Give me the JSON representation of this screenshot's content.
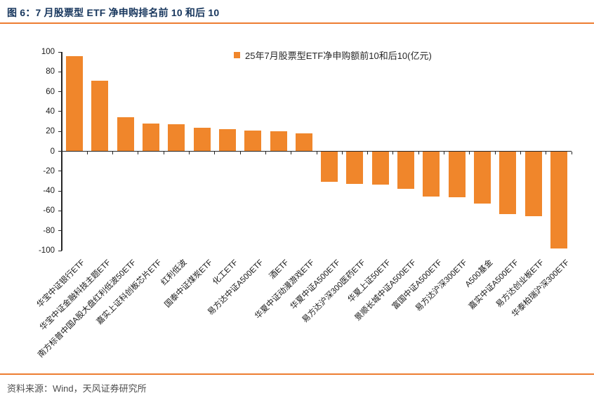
{
  "figure": {
    "title": "图 6：7 月股票型 ETF 净申购排名前 10 和后 10"
  },
  "chart_data": {
    "type": "bar",
    "legend": "25年7月股票型ETF净申购额前10和后10(亿元)",
    "legend_position": "top-center",
    "unit": "亿元",
    "grid": false,
    "ylim": [
      -100,
      100
    ],
    "yticks": [
      100,
      80,
      60,
      40,
      20,
      0,
      -20,
      -40,
      -60,
      -80,
      -100
    ],
    "bar_color": "#F0862B",
    "categories": [
      "华宝中证银行ETF",
      "华宝中证金融科技主题ETF",
      "南方标普中国A股大盘红利低波50ETF",
      "嘉实上证科创板芯片ETF",
      "红利低波",
      "国泰中证煤炭ETF",
      "化工ETF",
      "易方达中证A500ETF",
      "酒ETF",
      "华夏中证动漫游戏ETF",
      "华夏中证A500ETF",
      "易方达沪深300医药ETF",
      "华夏上证50ETF",
      "景顺长城中证A500ETF",
      "富国中证A500ETF",
      "易方达沪深300ETF",
      "A500基金",
      "嘉实中证A500ETF",
      "易方达创业板ETF",
      "华泰柏瑞沪深300ETF"
    ],
    "values": [
      96,
      71,
      34,
      28,
      27,
      24,
      22,
      21,
      20,
      18,
      -30,
      -32,
      -33,
      -37,
      -45,
      -46,
      -52,
      -63,
      -65,
      -97
    ]
  },
  "footer": {
    "source_text": "资料来源：Wind，天风证券研究所"
  },
  "colors": {
    "accent_orange": "#ED7D31",
    "bar_orange": "#F0862B",
    "title_navy": "#17365D",
    "footer_gray": "#4D4D4D",
    "axis_black": "#262626"
  }
}
